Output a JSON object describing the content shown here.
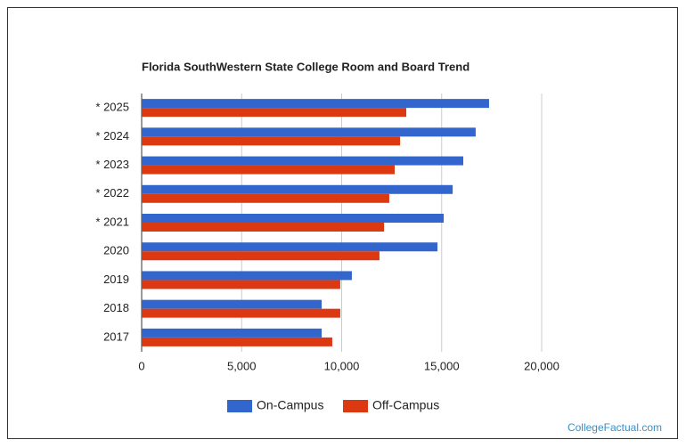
{
  "chart_data": {
    "type": "bar",
    "orientation": "horizontal",
    "title": "Florida SouthWestern State College Room and Board Trend",
    "categories": [
      "* 2025",
      "* 2024",
      "* 2023",
      "* 2022",
      "* 2021",
      "2020",
      "2019",
      "2018",
      "2017"
    ],
    "series": [
      {
        "name": "On-Campus",
        "color": "#3366cc",
        "values": [
          17370,
          16700,
          16080,
          15550,
          15100,
          14790,
          10510,
          9000,
          9000
        ]
      },
      {
        "name": "Off-Campus",
        "color": "#dc3912",
        "values": [
          13230,
          12920,
          12650,
          12380,
          12120,
          11890,
          9930,
          9930,
          9530
        ]
      }
    ],
    "xlim": [
      0,
      20000
    ],
    "xticks": [
      0,
      {
        "value": 5000,
        "label": "5,000"
      },
      {
        "value": 10000,
        "label": "10,000"
      },
      {
        "value": 15000,
        "label": "15,000"
      },
      {
        "value": 20000,
        "label": "20,000"
      }
    ],
    "grid": true,
    "legend": "bottom",
    "watermark": "CollegeFactual.com"
  }
}
